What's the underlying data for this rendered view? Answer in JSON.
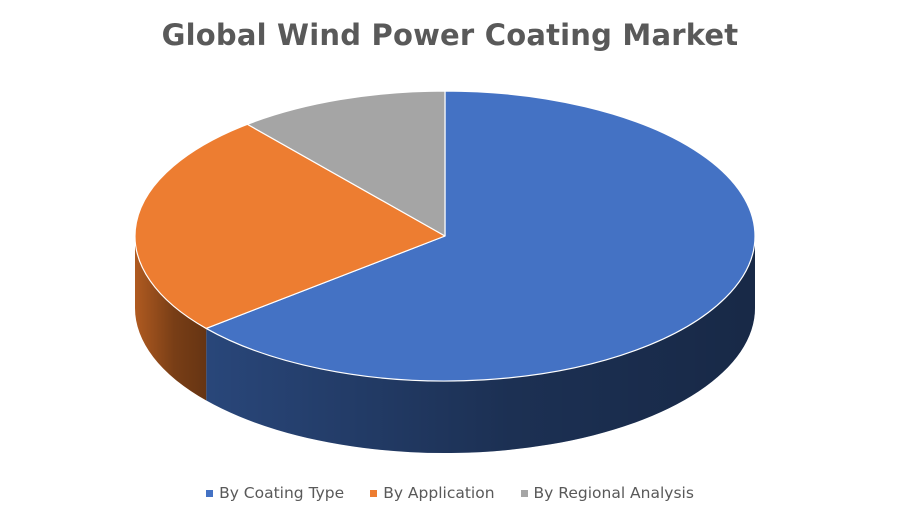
{
  "chart_data": {
    "type": "pie",
    "title": "Global Wind Power Coating Market",
    "legend_position": "bottom",
    "categories": [
      "By Coating Type",
      "By Application",
      "By Regional Analysis"
    ],
    "values": [
      64,
      25,
      11
    ],
    "colors": [
      "#4472C4",
      "#ED7D31",
      "#A5A5A5"
    ],
    "side_colors": [
      "#2B4A80",
      "#B95F22",
      "#7A7A7A"
    ]
  }
}
